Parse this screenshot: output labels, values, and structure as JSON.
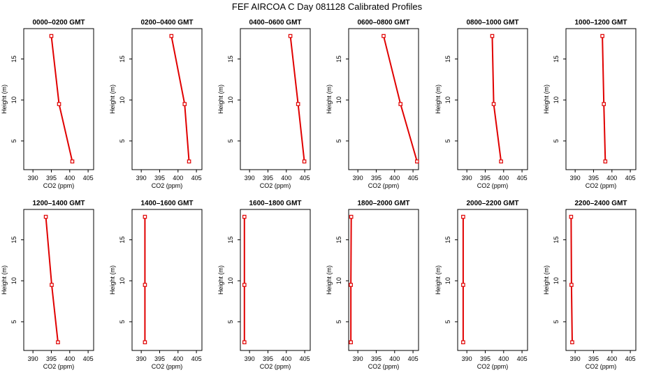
{
  "figure": {
    "title": "FEF AIRCOA C  Day 081128  Calibrated Profiles"
  },
  "chart_data": {
    "type": "line",
    "xlabel": "CO2 (ppm)",
    "ylabel": "Height (m)",
    "xlim": [
      387.5,
      406.5
    ],
    "ylim": [
      1.5,
      18.7
    ],
    "xticks": [
      390,
      395,
      400,
      405
    ],
    "yticks": [
      5,
      10,
      15
    ],
    "line_color": "#e00000",
    "marker": "open-square",
    "panels": [
      {
        "title": "0000–0200 GMT",
        "points": [
          {
            "x": 395.0,
            "y": 17.8
          },
          {
            "x": 397.1,
            "y": 9.5
          },
          {
            "x": 400.7,
            "y": 2.5
          }
        ]
      },
      {
        "title": "0200–0400 GMT",
        "points": [
          {
            "x": 398.2,
            "y": 17.8
          },
          {
            "x": 401.8,
            "y": 9.5
          },
          {
            "x": 403.0,
            "y": 2.5
          }
        ]
      },
      {
        "title": "0400–0600 GMT",
        "points": [
          {
            "x": 401.1,
            "y": 17.8
          },
          {
            "x": 403.2,
            "y": 9.5
          },
          {
            "x": 404.9,
            "y": 2.5
          }
        ]
      },
      {
        "title": "0600–0800 GMT",
        "points": [
          {
            "x": 397.0,
            "y": 17.8
          },
          {
            "x": 401.6,
            "y": 9.5
          },
          {
            "x": 406.1,
            "y": 2.5
          }
        ]
      },
      {
        "title": "0800–1000 GMT",
        "points": [
          {
            "x": 396.9,
            "y": 17.8
          },
          {
            "x": 397.3,
            "y": 9.5
          },
          {
            "x": 399.3,
            "y": 2.5
          }
        ]
      },
      {
        "title": "1000–1200 GMT",
        "points": [
          {
            "x": 397.4,
            "y": 17.8
          },
          {
            "x": 397.8,
            "y": 9.5
          },
          {
            "x": 398.2,
            "y": 2.5
          }
        ]
      },
      {
        "title": "1200–1400 GMT",
        "points": [
          {
            "x": 393.5,
            "y": 17.8
          },
          {
            "x": 395.1,
            "y": 9.5
          },
          {
            "x": 396.8,
            "y": 2.5
          }
        ]
      },
      {
        "title": "1400–1600 GMT",
        "points": [
          {
            "x": 391.0,
            "y": 17.8
          },
          {
            "x": 391.0,
            "y": 9.5
          },
          {
            "x": 391.0,
            "y": 2.5
          }
        ]
      },
      {
        "title": "1600–1800 GMT",
        "points": [
          {
            "x": 388.6,
            "y": 17.8
          },
          {
            "x": 388.6,
            "y": 9.5
          },
          {
            "x": 388.6,
            "y": 2.5
          }
        ]
      },
      {
        "title": "1800–2000 GMT",
        "points": [
          {
            "x": 388.2,
            "y": 17.8
          },
          {
            "x": 388.1,
            "y": 9.5
          },
          {
            "x": 388.1,
            "y": 2.5
          }
        ]
      },
      {
        "title": "2000–2200 GMT",
        "points": [
          {
            "x": 389.0,
            "y": 17.8
          },
          {
            "x": 389.0,
            "y": 9.5
          },
          {
            "x": 389.0,
            "y": 2.5
          }
        ]
      },
      {
        "title": "2200–2400 GMT",
        "points": [
          {
            "x": 388.9,
            "y": 17.8
          },
          {
            "x": 389.0,
            "y": 9.5
          },
          {
            "x": 389.2,
            "y": 2.5
          }
        ]
      }
    ]
  }
}
